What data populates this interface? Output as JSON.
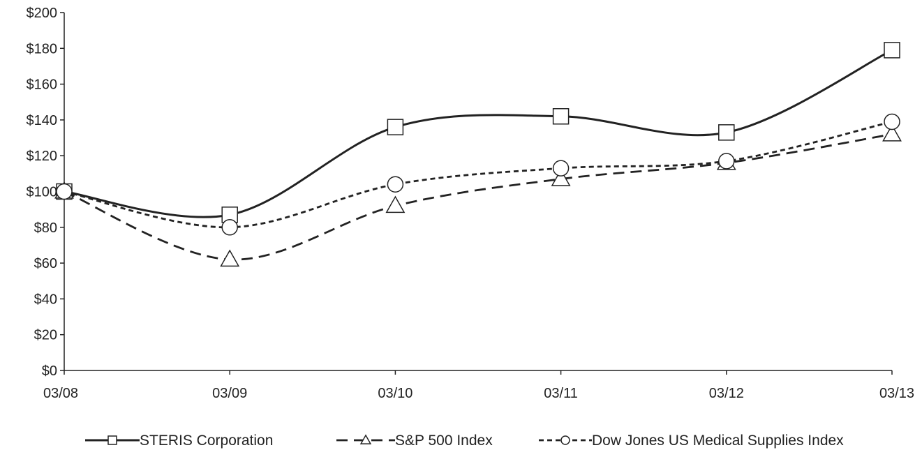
{
  "chart_data": {
    "type": "line",
    "title": "",
    "xlabel": "",
    "ylabel": "",
    "categories": [
      "03/08",
      "03/09",
      "03/10",
      "03/11",
      "03/12",
      "03/13"
    ],
    "ylim": [
      0,
      200
    ],
    "yticks": [
      0,
      20,
      40,
      60,
      80,
      100,
      120,
      140,
      160,
      180,
      200
    ],
    "ytick_labels": [
      "$0",
      "$20",
      "$40",
      "$60",
      "$80",
      "$100",
      "$120",
      "$140",
      "$160",
      "$180",
      "$200"
    ],
    "grid": false,
    "legend_position": "bottom",
    "series": [
      {
        "name": "STERIS Corporation",
        "values": [
          100,
          87,
          136,
          142,
          133,
          179
        ],
        "marker": "square",
        "line": "solid",
        "color": "#222222"
      },
      {
        "name": "S&P 500 Index",
        "values": [
          100,
          62,
          92,
          107,
          116,
          132
        ],
        "marker": "triangle",
        "line": "dashed",
        "color": "#222222"
      },
      {
        "name": "Dow Jones US Medical Supplies Index",
        "values": [
          100,
          80,
          104,
          113,
          117,
          139
        ],
        "marker": "circle",
        "line": "short-dashed",
        "color": "#222222"
      }
    ]
  }
}
